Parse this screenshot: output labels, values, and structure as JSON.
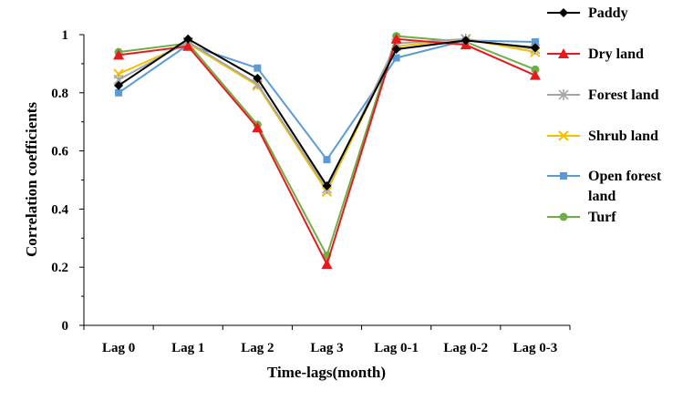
{
  "chart_data": {
    "type": "line",
    "title": "",
    "xlabel": "Time-lags(month)",
    "ylabel": "Correlation coefficients",
    "ylim": [
      0,
      1
    ],
    "yticks": [
      "0",
      "0.2",
      "0.4",
      "0.6",
      "0.8",
      "1"
    ],
    "yticks_values": [
      0,
      0.2,
      0.4,
      0.6,
      0.8,
      1
    ],
    "categories": [
      "Lag 0",
      "Lag 1",
      "Lag 2",
      "Lag 3",
      "Lag 0-1",
      "Lag 0-2",
      "Lag 0-3"
    ],
    "legend_position": "right",
    "grid": false,
    "series": [
      {
        "name": "Paddy",
        "color": "#000000",
        "marker": "diamond",
        "values": [
          0.825,
          0.985,
          0.85,
          0.48,
          0.95,
          0.98,
          0.955
        ]
      },
      {
        "name": "Dry land",
        "color": "#e8191c",
        "marker": "triangle",
        "values": [
          0.93,
          0.96,
          0.68,
          0.21,
          0.985,
          0.965,
          0.86
        ]
      },
      {
        "name": "Forest land",
        "color": "#a6a6a6",
        "marker": "asterisk",
        "values": [
          0.845,
          0.975,
          0.83,
          0.47,
          0.97,
          0.985,
          0.95
        ]
      },
      {
        "name": "Shrub land",
        "color": "#f5c000",
        "marker": "x",
        "values": [
          0.865,
          0.97,
          0.825,
          0.46,
          0.96,
          0.985,
          0.94
        ]
      },
      {
        "name": "Open forest land",
        "color": "#5b9bd5",
        "marker": "square",
        "values": [
          0.8,
          0.965,
          0.885,
          0.57,
          0.92,
          0.98,
          0.975
        ]
      },
      {
        "name": "Turf",
        "color": "#70ad47",
        "marker": "circle",
        "values": [
          0.94,
          0.97,
          0.69,
          0.24,
          0.995,
          0.975,
          0.88
        ]
      }
    ]
  }
}
